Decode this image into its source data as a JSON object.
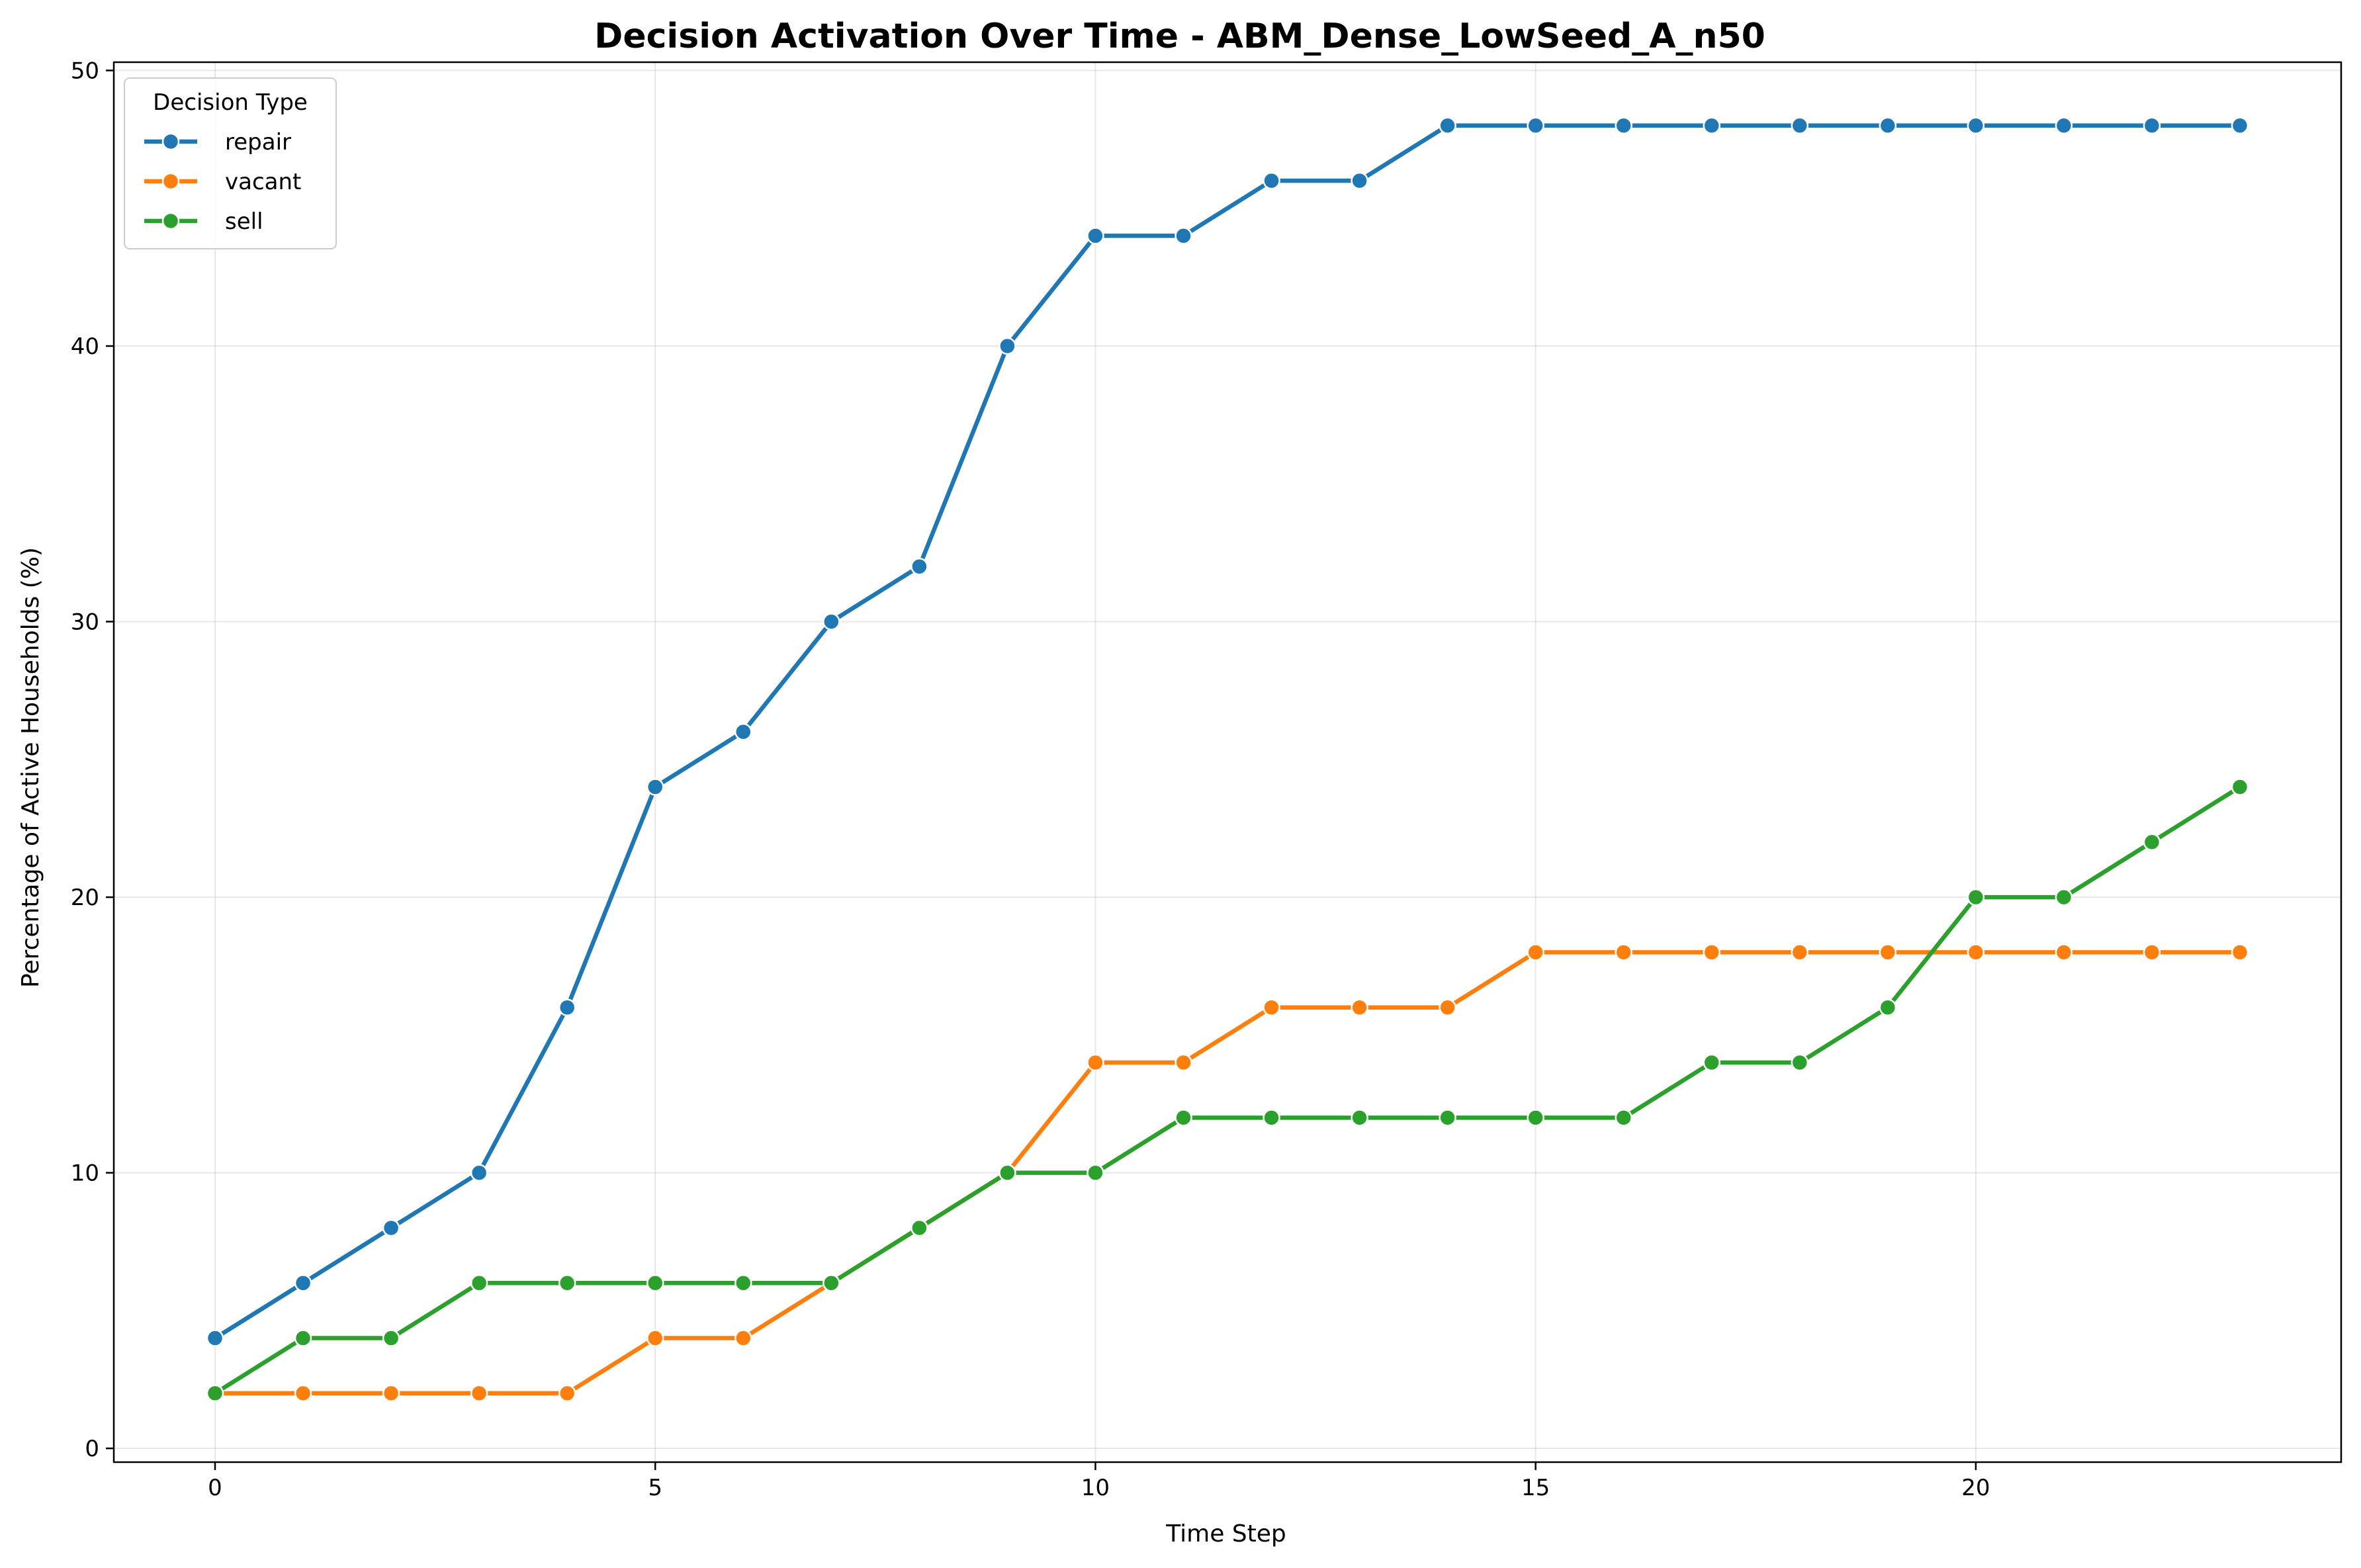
{
  "chart_data": {
    "type": "line",
    "title": "Decision Activation Over Time - ABM_Dense_LowSeed_A_n50",
    "xlabel": "Time Step",
    "ylabel": "Percentage of Active Households (%)",
    "xlim": [
      -1.15,
      24.15
    ],
    "ylim": [
      -0.5,
      50.3
    ],
    "xticks": [
      "0",
      "5",
      "10",
      "15",
      "20"
    ],
    "yticks": [
      "0",
      "10",
      "20",
      "30",
      "40",
      "50"
    ],
    "grid": true,
    "legend": {
      "title": "Decision Type",
      "placement": "top-left"
    },
    "x": [
      0,
      1,
      2,
      3,
      4,
      5,
      6,
      7,
      8,
      9,
      10,
      11,
      12,
      13,
      14,
      15,
      16,
      17,
      18,
      19,
      20,
      21,
      22,
      23
    ],
    "series": [
      {
        "name": "repair",
        "color": "#1f77b4",
        "values": [
          4,
          6,
          8,
          10,
          16,
          24,
          26,
          30,
          32,
          40,
          44,
          44,
          46,
          46,
          48,
          48,
          48,
          48,
          48,
          48,
          48,
          48,
          48,
          48
        ]
      },
      {
        "name": "vacant",
        "color": "#ff7f0e",
        "values": [
          2,
          2,
          2,
          2,
          2,
          4,
          4,
          6,
          8,
          10,
          14,
          14,
          16,
          16,
          16,
          18,
          18,
          18,
          18,
          18,
          18,
          18,
          18,
          18
        ]
      },
      {
        "name": "sell",
        "color": "#2ca02c",
        "values": [
          2,
          4,
          4,
          6,
          6,
          6,
          6,
          6,
          8,
          10,
          10,
          12,
          12,
          12,
          12,
          12,
          12,
          14,
          14,
          16,
          20,
          20,
          22,
          24
        ]
      }
    ]
  }
}
